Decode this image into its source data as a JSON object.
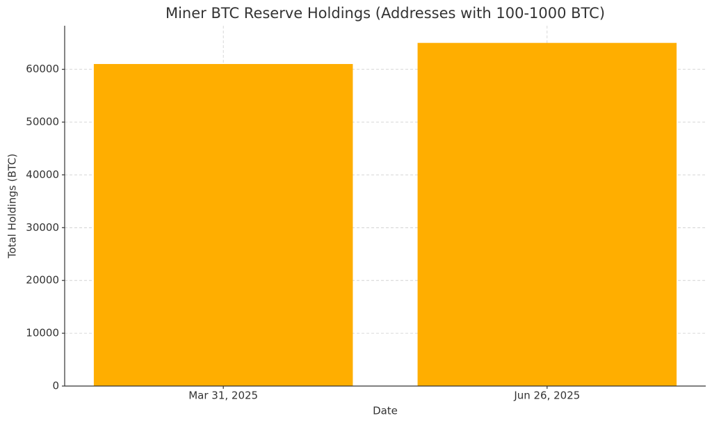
{
  "chart_data": {
    "type": "bar",
    "title": "Miner BTC Reserve Holdings (Addresses with 100-1000 BTC)",
    "x_label": "Date",
    "y_label": "Total Holdings (BTC)",
    "categories": [
      "Mar 31, 2025",
      "Jun 26, 2025"
    ],
    "values": [
      61000,
      65000
    ],
    "color": "#ffae00",
    "ylim": [
      0,
      68250
    ],
    "yticks": [
      0,
      10000,
      20000,
      30000,
      40000,
      50000,
      60000
    ],
    "grid": true
  }
}
